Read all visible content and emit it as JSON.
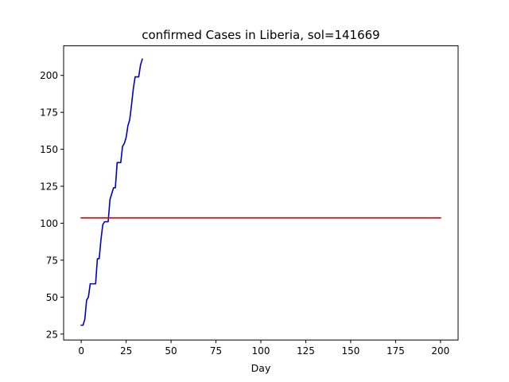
{
  "chart_data": {
    "type": "line",
    "title": "confirmed Cases in Liberia, sol=141669",
    "xlabel": "Day",
    "ylabel": "",
    "xlim": [
      -9.8,
      209.8
    ],
    "ylim": [
      21,
      220
    ],
    "xticks": [
      0,
      25,
      50,
      75,
      100,
      125,
      150,
      175,
      200
    ],
    "yticks": [
      25,
      50,
      75,
      100,
      125,
      150,
      175,
      200
    ],
    "grid": false,
    "series": [
      {
        "color": "#0000cc",
        "x": [
          0,
          1,
          2,
          3,
          4,
          5,
          6,
          7,
          8,
          9,
          10,
          11,
          12,
          13,
          14,
          15,
          16,
          17,
          18,
          19,
          20,
          21,
          22,
          23,
          24,
          25,
          26,
          27,
          28,
          29,
          30,
          31,
          32,
          33,
          34
        ],
        "values": [
          31,
          31,
          35,
          48,
          50,
          59,
          59,
          59,
          59,
          76,
          76,
          89,
          99,
          101,
          101,
          101,
          116,
          120,
          124,
          124,
          141,
          141,
          141,
          152,
          154,
          158,
          166,
          170,
          180,
          191,
          199,
          199,
          199,
          207,
          211
        ]
      },
      {
        "color": "#e60000",
        "x": [
          0,
          200
        ],
        "values": [
          103.6,
          103.6
        ]
      }
    ]
  }
}
